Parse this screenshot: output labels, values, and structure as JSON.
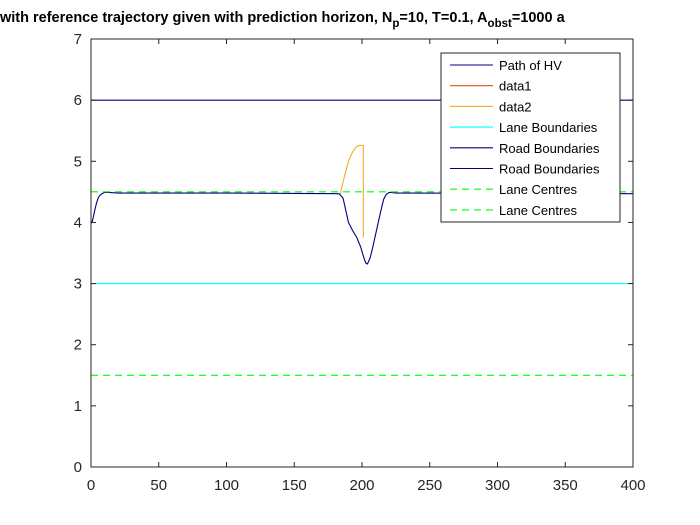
{
  "chart_data": {
    "type": "line",
    "title_segments": [
      {
        "text": "with reference trajectory given with prediction horizon, N"
      },
      {
        "text": "p",
        "sub": true
      },
      {
        "text": "=10, T=0.1, A"
      },
      {
        "text": "obst",
        "sub": true
      },
      {
        "text": "=1000 a"
      }
    ],
    "xlim": [
      0,
      400
    ],
    "ylim": [
      0,
      7
    ],
    "xticks": [
      0,
      50,
      100,
      150,
      200,
      250,
      300,
      350,
      400
    ],
    "yticks": [
      0,
      1,
      2,
      3,
      4,
      5,
      6,
      7
    ],
    "grid": false,
    "legend_position": "top-right",
    "series": [
      {
        "name": "Path of HV",
        "color": "#00007f",
        "style": "solid",
        "x": [
          0,
          1,
          2,
          3,
          4,
          5,
          6,
          8,
          10,
          13,
          20,
          100,
          183,
          186,
          188,
          190,
          193,
          196,
          199,
          201,
          202,
          203,
          204,
          206,
          208,
          210,
          212,
          214,
          216,
          218,
          220,
          222,
          225,
          230,
          400
        ],
        "y": [
          3.98,
          4.02,
          4.12,
          4.22,
          4.31,
          4.38,
          4.43,
          4.47,
          4.49,
          4.49,
          4.48,
          4.48,
          4.47,
          4.4,
          4.2,
          4.0,
          3.87,
          3.76,
          3.6,
          3.45,
          3.38,
          3.33,
          3.32,
          3.42,
          3.6,
          3.8,
          4.0,
          4.2,
          4.38,
          4.46,
          4.49,
          4.49,
          4.48,
          4.48,
          4.47
        ]
      },
      {
        "name": "data1",
        "color": "#d95319",
        "style": "solid",
        "x": [],
        "y": []
      },
      {
        "name": "data2",
        "color": "#edb120",
        "style": "solid",
        "x": [
          184,
          187,
          190,
          193,
          196,
          198,
          200,
          201,
          201,
          201
        ],
        "y": [
          4.47,
          4.75,
          5.0,
          5.15,
          5.24,
          5.26,
          5.26,
          5.26,
          3.75,
          3.75
        ]
      },
      {
        "name": "Lane Boundaries",
        "color": "#00ffff",
        "style": "solid",
        "x": [
          0,
          400
        ],
        "y": [
          3,
          3
        ]
      },
      {
        "name": "Road Boundaries",
        "color": "#00007f",
        "style": "solid",
        "x": [
          0,
          400
        ],
        "y": [
          6,
          6
        ]
      },
      {
        "name": "Road Boundaries",
        "color": "#00007f",
        "style": "solid",
        "x": [
          0,
          400
        ],
        "y": [
          0,
          0
        ]
      },
      {
        "name": "Lane Centres",
        "color": "#00ff00",
        "style": "dashed",
        "x": [
          0,
          400
        ],
        "y": [
          4.5,
          4.5
        ]
      },
      {
        "name": "Lane Centres",
        "color": "#00ff00",
        "style": "dashed",
        "x": [
          0,
          400
        ],
        "y": [
          1.5,
          1.5
        ]
      }
    ]
  }
}
